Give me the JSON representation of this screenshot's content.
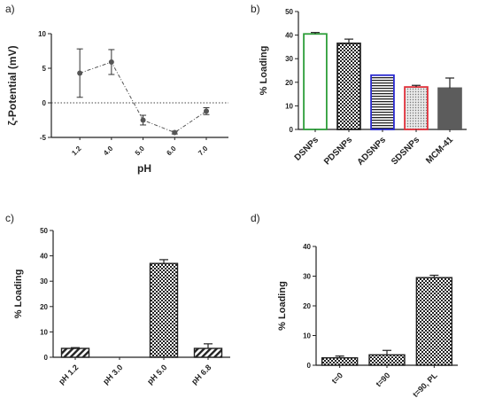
{
  "figure": {
    "panels": [
      "a)",
      "b)",
      "c)",
      "d)"
    ]
  },
  "pattern_fills": {
    "stripe": "diagonal-stripes",
    "checker": "checkerboard",
    "hline": "horizontal-lines",
    "dots": "dots"
  },
  "chart_data": [
    {
      "panel": "a)",
      "type": "line",
      "ylabel": "ζ-Potential (mV)",
      "xlabel": "pH",
      "categories": [
        "1.2",
        "4.0",
        "5.0",
        "6.0",
        "7.0"
      ],
      "values": [
        4.3,
        5.9,
        -2.5,
        -4.3,
        -1.2
      ],
      "errors": [
        3.5,
        1.8,
        0.7,
        0.2,
        0.5
      ],
      "ylim": [
        -5,
        10
      ],
      "yticks": [
        "10",
        "5",
        "0",
        "-5"
      ],
      "reference_line": 0,
      "line_style": "dash-dot",
      "color": "#555555"
    },
    {
      "panel": "b)",
      "type": "bar",
      "ylabel": "% Loading",
      "categories": [
        "DSNPs",
        "PDSNPs",
        "ADSNPs",
        "SDSNPs",
        "MCM-41"
      ],
      "values": [
        40.5,
        36.5,
        23.0,
        18.0,
        17.5
      ],
      "errors": [
        0.6,
        1.8,
        0.0,
        0.7,
        4.3
      ],
      "ylim": [
        0,
        50
      ],
      "yticks": [
        "0",
        "10",
        "20",
        "30",
        "40",
        "50"
      ],
      "bar_styles": [
        {
          "fill": "#ffffff",
          "stroke": "#2e9e3a",
          "pattern": "none"
        },
        {
          "fill": "checker",
          "stroke": "#222222",
          "pattern": "checker"
        },
        {
          "fill": "hline",
          "stroke": "#2a2ad0",
          "pattern": "hline"
        },
        {
          "fill": "dots",
          "stroke": "#e0303a",
          "pattern": "dots"
        },
        {
          "fill": "#5c5c5c",
          "stroke": "#5c5c5c",
          "pattern": "none"
        }
      ]
    },
    {
      "panel": "c)",
      "type": "bar",
      "ylabel": "%  Loading",
      "categories": [
        "pH 1.2",
        "pH 3.0",
        "pH 5.0",
        "pH 6.8"
      ],
      "values": [
        3.5,
        0,
        37.0,
        3.5
      ],
      "errors": [
        0.3,
        0,
        1.5,
        1.8
      ],
      "ylim": [
        0,
        50
      ],
      "yticks": [
        "0",
        "10",
        "20",
        "30",
        "40",
        "50"
      ],
      "bar_patterns": [
        "stripe",
        "none",
        "checker",
        "stripe"
      ]
    },
    {
      "panel": "d)",
      "type": "bar",
      "ylabel": "% Loading",
      "categories": [
        "t=0",
        "t=90",
        "t=90, PL"
      ],
      "values": [
        2.5,
        3.5,
        29.5
      ],
      "errors": [
        0.6,
        1.5,
        0.8
      ],
      "ylim": [
        0,
        40
      ],
      "yticks": [
        "0",
        "10",
        "20",
        "30",
        "40"
      ],
      "bar_patterns": [
        "checker",
        "checker",
        "checker"
      ]
    }
  ]
}
